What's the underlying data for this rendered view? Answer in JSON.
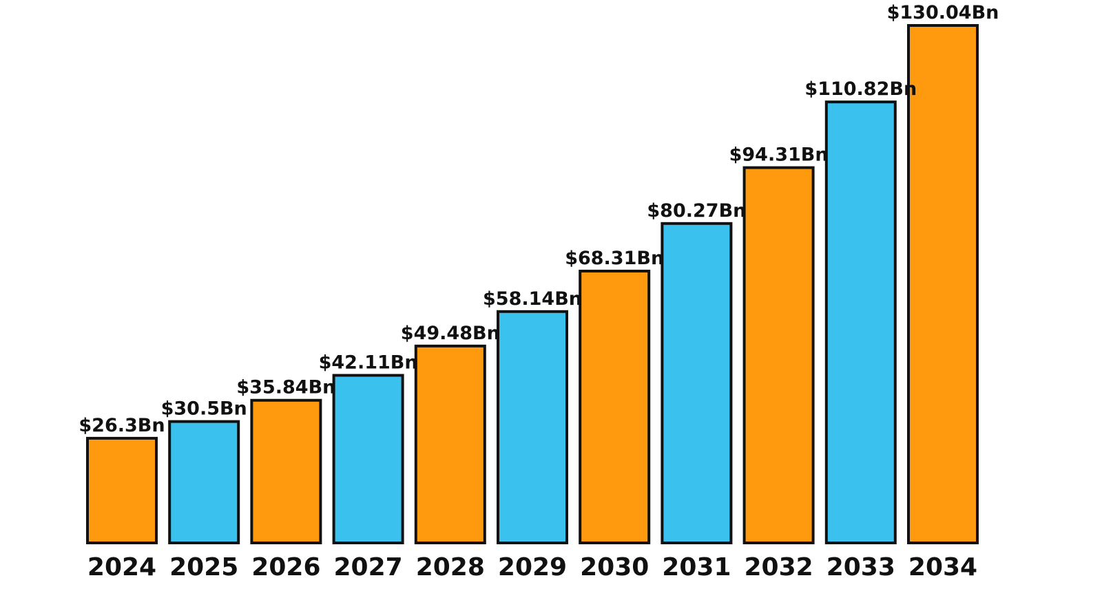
{
  "chart_data": {
    "type": "bar",
    "categories": [
      "2024",
      "2025",
      "2026",
      "2027",
      "2028",
      "2029",
      "2030",
      "2031",
      "2032",
      "2033",
      "2034"
    ],
    "values": [
      26.3,
      30.5,
      35.84,
      42.11,
      49.48,
      58.14,
      68.31,
      80.27,
      94.31,
      110.82,
      130.04
    ],
    "data_labels": [
      "$26.3Bn",
      "$30.5Bn",
      "$35.84Bn",
      "$42.11Bn",
      "$49.48Bn",
      "$58.14Bn",
      "$68.31Bn",
      "$80.27Bn",
      "$94.31Bn",
      "$110.82Bn",
      "$130.04Bn"
    ],
    "title": "",
    "xlabel": "",
    "ylabel": "",
    "ylim": [
      0,
      130.04
    ],
    "grid": false,
    "legend": "none",
    "colors": [
      "#FF9A0E",
      "#3BC1EE",
      "#FF9A0E",
      "#3BC1EE",
      "#FF9A0E",
      "#3BC1EE",
      "#FF9A0E",
      "#3BC1EE",
      "#FF9A0E",
      "#3BC1EE",
      "#FF9A0E"
    ],
    "bar_outline_color": "#111111"
  }
}
